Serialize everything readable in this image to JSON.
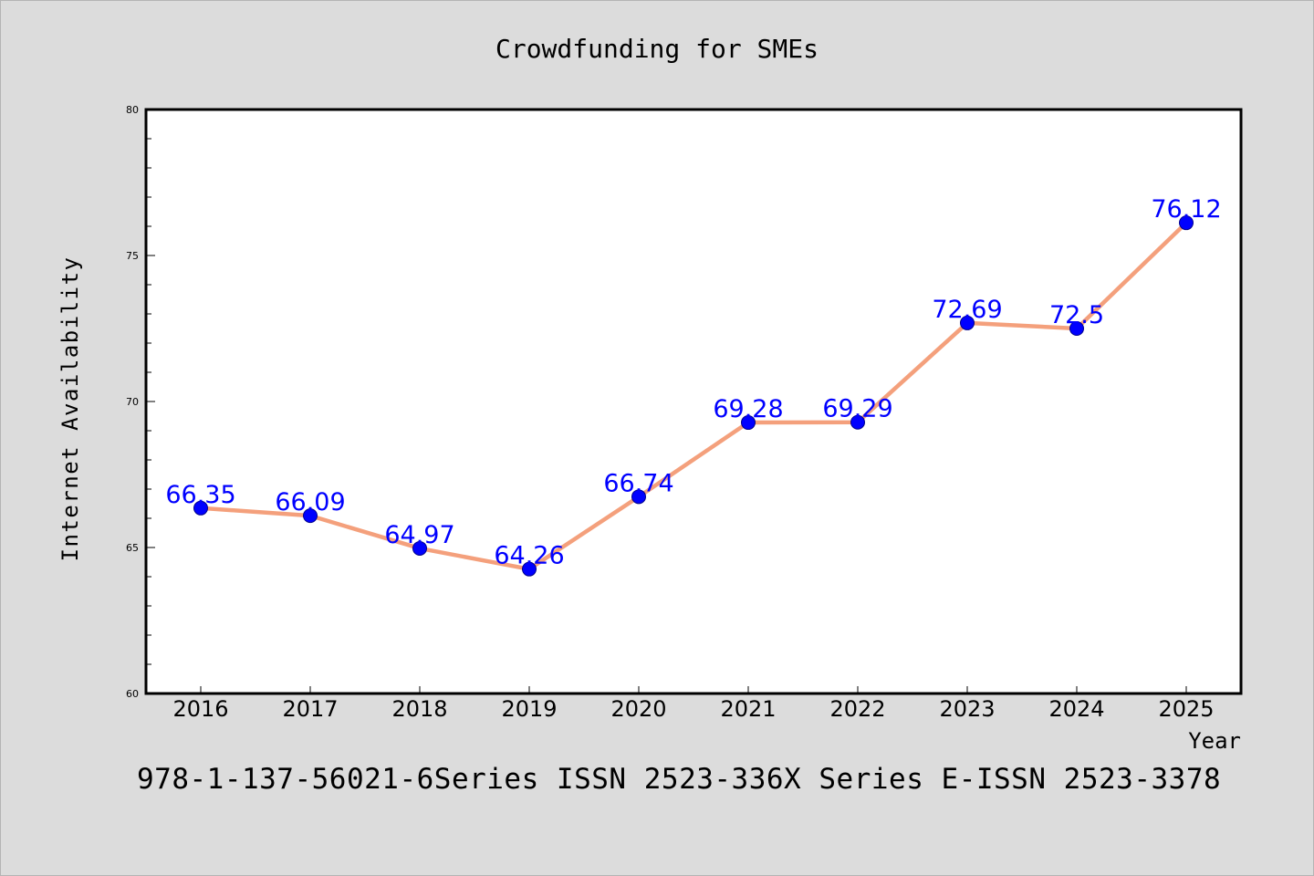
{
  "chart_data": {
    "type": "line",
    "title": "Crowdfunding for SMEs",
    "xlabel": "Year",
    "ylabel": "Internet Availability",
    "categories": [
      "2016",
      "2017",
      "2018",
      "2019",
      "2020",
      "2021",
      "2022",
      "2023",
      "2024",
      "2025"
    ],
    "series": [
      {
        "values": [
          66.35,
          66.09,
          64.97,
          64.26,
          66.74,
          69.28,
          69.29,
          72.69,
          72.5,
          76.12
        ],
        "data_labels": [
          "66.35",
          "66.09",
          "64.97",
          "64.26",
          "66.74",
          "69.28",
          "69.29",
          "72.69",
          "72.5",
          "76.12"
        ]
      }
    ],
    "ylim": [
      60,
      80
    ],
    "yticks": [
      "60",
      "65",
      "70",
      "75",
      "80"
    ],
    "grid": false,
    "legend": "none",
    "colors": {
      "line": "#f4a07c",
      "marker": "#0000ff",
      "label": "#0000ff",
      "background": "#dcdcdc",
      "plot_background": "#ffffff"
    }
  },
  "footer_text": "978-1-137-56021-6Series ISSN 2523-336X Series E-ISSN 2523-3378"
}
